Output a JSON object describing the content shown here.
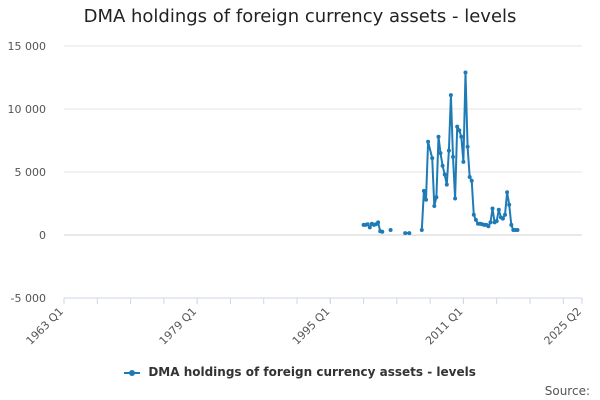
{
  "colors": {
    "series": "#1f7bb6"
  },
  "chart_data": {
    "type": "line",
    "title": "DMA holdings of foreign currency assets - levels",
    "xlabel": "",
    "ylabel": "",
    "x_ticks": [
      "1963 Q1",
      "1979 Q1",
      "1995 Q1",
      "2011 Q1",
      "2025 Q2"
    ],
    "y_ticks": [
      "-5 000",
      "0",
      "5 000",
      "10 000",
      "15 000"
    ],
    "ylim": [
      -5000,
      15000
    ],
    "xlim": [
      "1963 Q1",
      "2025 Q2"
    ],
    "grid": true,
    "legend": "bottom-center",
    "source_label": "Source:",
    "series": [
      {
        "name": "DMA holdings of foreign currency assets - levels",
        "segments": [
          [
            [
              "1999 Q1",
              800
            ],
            [
              "1999 Q2",
              800
            ],
            [
              "1999 Q3",
              850
            ],
            [
              "1999 Q4",
              600
            ],
            [
              "2000 Q1",
              900
            ],
            [
              "2000 Q2",
              800
            ],
            [
              "2000 Q3",
              850
            ],
            [
              "2000 Q4",
              1000
            ],
            [
              "2001 Q1",
              300
            ],
            [
              "2001 Q2",
              250
            ]
          ],
          [
            [
              "2002 Q2",
              400
            ]
          ],
          [
            [
              "2004 Q1",
              150
            ],
            [
              "2004 Q3",
              150
            ]
          ],
          [
            [
              "2006 Q1",
              400
            ],
            [
              "2006 Q2",
              3500
            ],
            [
              "2006 Q3",
              2800
            ],
            [
              "2006 Q4",
              7400
            ],
            [
              "2007 Q2",
              6100
            ],
            [
              "2007 Q3",
              2300
            ],
            [
              "2007 Q4",
              3000
            ],
            [
              "2008 Q1",
              7800
            ],
            [
              "2008 Q2",
              6500
            ],
            [
              "2008 Q3",
              5500
            ],
            [
              "2008 Q4",
              4800
            ],
            [
              "2009 Q1",
              4000
            ],
            [
              "2009 Q2",
              6700
            ],
            [
              "2009 Q3",
              11100
            ],
            [
              "2009 Q4",
              6200
            ],
            [
              "2010 Q1",
              2900
            ],
            [
              "2010 Q2",
              8600
            ],
            [
              "2010 Q3",
              8300
            ],
            [
              "2010 Q4",
              7800
            ],
            [
              "2011 Q1",
              5800
            ],
            [
              "2011 Q2",
              12900
            ],
            [
              "2011 Q3",
              7000
            ],
            [
              "2011 Q4",
              4600
            ],
            [
              "2012 Q1",
              4300
            ],
            [
              "2012 Q2",
              1600
            ],
            [
              "2012 Q3",
              1200
            ],
            [
              "2012 Q4",
              900
            ],
            [
              "2013 Q1",
              900
            ],
            [
              "2013 Q2",
              850
            ],
            [
              "2013 Q3",
              800
            ],
            [
              "2013 Q4",
              800
            ],
            [
              "2014 Q1",
              700
            ],
            [
              "2014 Q2",
              1000
            ],
            [
              "2014 Q3",
              2100
            ],
            [
              "2014 Q4",
              1000
            ],
            [
              "2015 Q1",
              1100
            ],
            [
              "2015 Q2",
              2000
            ],
            [
              "2015 Q3",
              1400
            ],
            [
              "2015 Q4",
              1300
            ],
            [
              "2016 Q1",
              1600
            ],
            [
              "2016 Q2",
              3400
            ],
            [
              "2016 Q3",
              2400
            ],
            [
              "2016 Q4",
              800
            ],
            [
              "2017 Q1",
              400
            ],
            [
              "2017 Q2",
              400
            ],
            [
              "2017 Q3",
              400
            ]
          ]
        ]
      }
    ]
  }
}
